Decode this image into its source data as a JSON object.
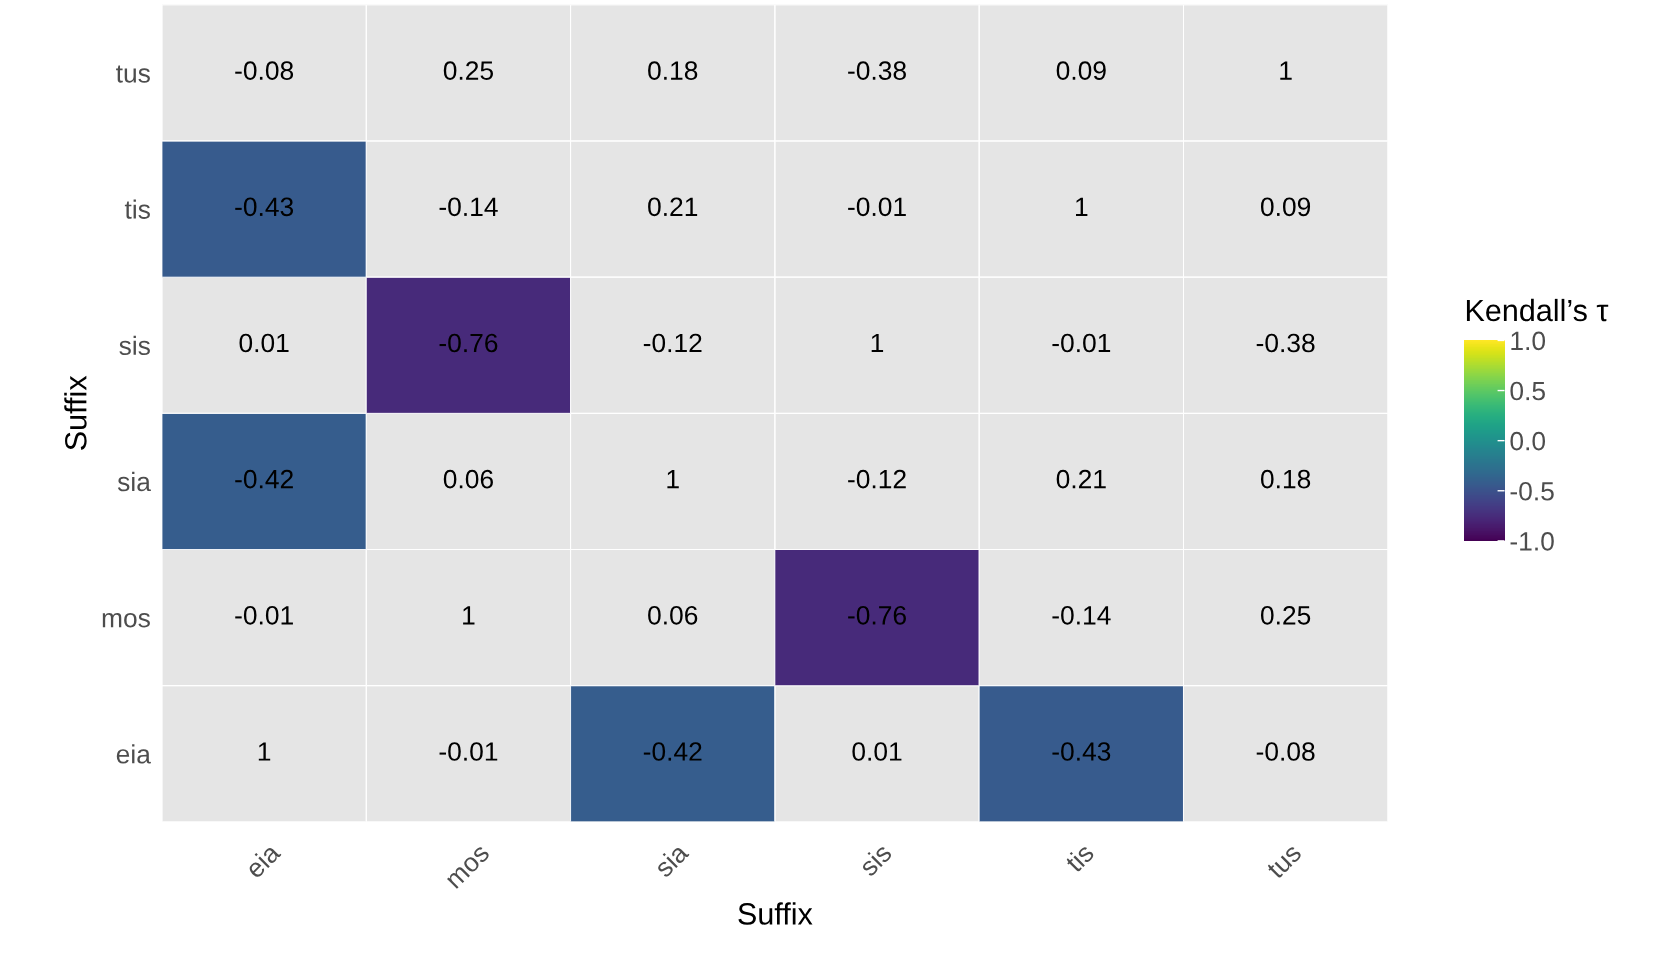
{
  "chart_data": {
    "type": "heatmap",
    "xlabel": "Suffix",
    "ylabel": "Suffix",
    "clabel": "Kendall’s τ",
    "categories": [
      "eia",
      "mos",
      "sia",
      "sis",
      "tis",
      "tus"
    ],
    "y_categories": [
      "tus",
      "tis",
      "sis",
      "sia",
      "mos",
      "eia"
    ],
    "cells": [
      [
        null,
        null,
        null,
        null,
        null,
        null
      ],
      [
        -0.43,
        null,
        null,
        null,
        null,
        null
      ],
      [
        null,
        -0.76,
        null,
        null,
        null,
        null
      ],
      [
        -0.42,
        null,
        null,
        null,
        null,
        null
      ],
      [
        null,
        null,
        null,
        -0.76,
        null,
        null
      ],
      [
        null,
        null,
        -0.42,
        null,
        -0.43,
        null
      ]
    ],
    "cell_labels": [
      [
        "-0.08",
        "0.25",
        "0.18",
        "-0.38",
        "0.09",
        "1"
      ],
      [
        "-0.43",
        "-0.14",
        "0.21",
        "-0.01",
        "1",
        "0.09"
      ],
      [
        "0.01",
        "-0.76",
        "-0.12",
        "1",
        "-0.01",
        "-0.38"
      ],
      [
        "-0.42",
        "0.06",
        "1",
        "-0.12",
        "0.21",
        "0.18"
      ],
      [
        "-0.01",
        "1",
        "0.06",
        "-0.76",
        "-0.14",
        "0.25"
      ],
      [
        "1",
        "-0.01",
        "-0.42",
        "0.01",
        "-0.43",
        "-0.08"
      ]
    ],
    "clim": [
      -1,
      1
    ],
    "cticks": [
      {
        "value": -1,
        "label": "-1.0"
      },
      {
        "value": -0.5,
        "label": "-0.5"
      },
      {
        "value": 0,
        "label": "0.0"
      },
      {
        "value": 0.5,
        "label": "0.5"
      },
      {
        "value": 1,
        "label": "1.0"
      }
    ]
  }
}
